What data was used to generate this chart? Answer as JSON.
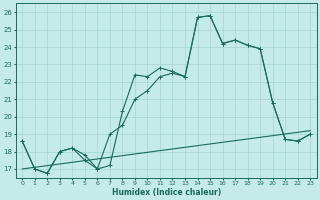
{
  "xlabel": "Humidex (Indice chaleur)",
  "bg_color": "#c5ebe6",
  "grid_color": "#a5d5d0",
  "line_color": "#1a6b5a",
  "xlim": [
    -0.5,
    23.5
  ],
  "ylim": [
    16.5,
    26.5
  ],
  "xticks": [
    0,
    1,
    2,
    3,
    4,
    5,
    6,
    7,
    8,
    9,
    10,
    11,
    12,
    13,
    14,
    15,
    16,
    17,
    18,
    19,
    20,
    21,
    22,
    23
  ],
  "yticks": [
    17,
    18,
    19,
    20,
    21,
    22,
    23,
    24,
    25,
    26
  ],
  "line1_x": [
    0,
    1,
    2,
    3,
    4,
    5,
    6,
    7,
    8,
    9,
    10,
    11,
    12,
    13,
    14,
    15,
    16,
    17,
    18,
    19,
    20,
    21,
    22,
    23
  ],
  "line1_y": [
    18.6,
    17.0,
    16.75,
    18.0,
    18.2,
    17.8,
    17.0,
    17.2,
    20.3,
    22.4,
    22.3,
    22.8,
    22.6,
    22.3,
    25.7,
    25.8,
    24.2,
    24.4,
    24.1,
    23.9,
    20.8,
    18.7,
    18.6,
    19.0
  ],
  "line2_x": [
    0,
    1,
    2,
    3,
    4,
    5,
    6,
    7,
    8,
    9,
    10,
    11,
    12,
    13,
    14,
    15,
    16,
    17,
    18,
    19,
    20,
    21,
    22,
    23
  ],
  "line2_y": [
    18.6,
    17.0,
    16.75,
    18.0,
    18.2,
    17.5,
    17.0,
    19.0,
    19.5,
    21.0,
    21.5,
    22.3,
    22.5,
    22.3,
    25.7,
    25.8,
    24.2,
    24.4,
    24.1,
    23.9,
    20.8,
    18.7,
    18.6,
    19.0
  ],
  "line3_x": [
    0,
    23
  ],
  "line3_y": [
    17.0,
    19.2
  ]
}
